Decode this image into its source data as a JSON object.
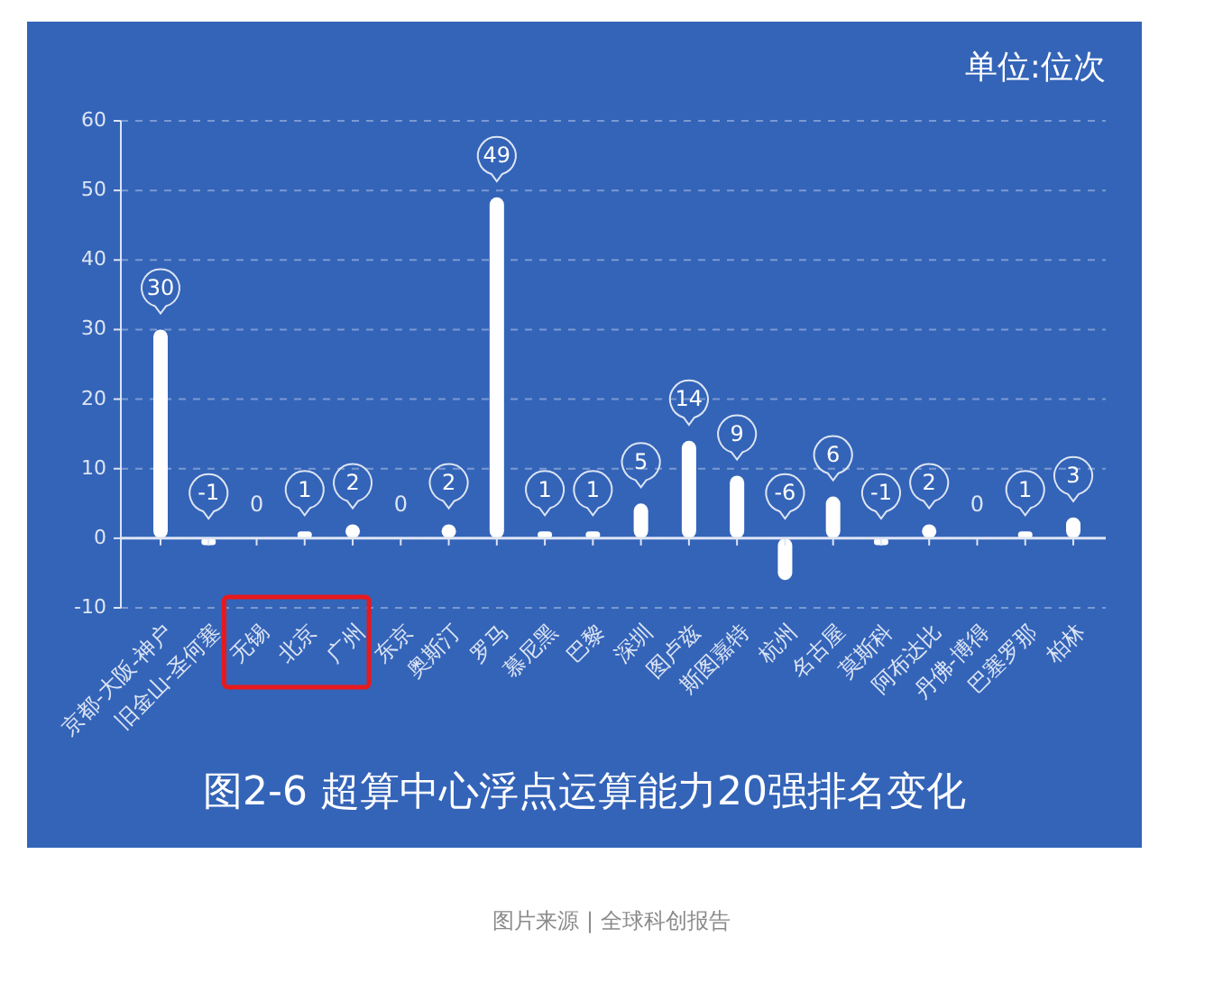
{
  "chart_data": {
    "type": "bar",
    "title": "图2-6 超算中心浮点运算能力20强排名变化",
    "ylabel": "单位:位次",
    "annotations": [
      "图片来源 | 全球科创报告"
    ],
    "categories": [
      "京都-大阪-神户",
      "旧金山-圣何塞",
      "无锡",
      "北京",
      "广州",
      "东京",
      "奥斯汀",
      "罗马",
      "慕尼黑",
      "巴黎",
      "深圳",
      "图卢兹",
      "斯图嘉特",
      "杭州",
      "名古屋",
      "莫斯科",
      "阿布达比",
      "丹佛-博得",
      "巴塞罗那",
      "柏林"
    ],
    "values": [
      30,
      -1,
      0,
      1,
      2,
      0,
      2,
      49,
      1,
      1,
      5,
      14,
      9,
      -6,
      6,
      -1,
      2,
      0,
      1,
      3
    ],
    "color": "#ffffff",
    "ylim": [
      -10,
      60
    ],
    "yticks": [
      -10,
      0,
      10,
      20,
      30,
      40,
      50,
      60
    ],
    "grid": "y",
    "data_labels": true
  }
}
